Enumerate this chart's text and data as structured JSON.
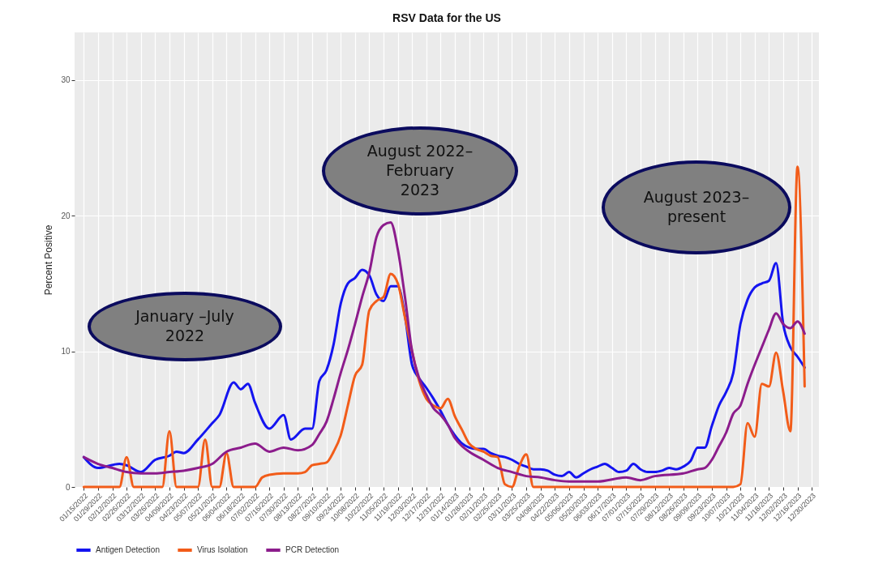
{
  "chart_data": {
    "type": "line",
    "title": "RSV Data for the US",
    "ylabel": "Percent Positive",
    "xlim": [
      "2022-01-06",
      "2024-01-06"
    ],
    "ylim": [
      0,
      33.5
    ],
    "yticks": [
      0,
      10,
      20,
      30
    ],
    "xticks": [
      {
        "value": "2022-01-15",
        "label": "01/15/2022"
      },
      {
        "value": "2022-01-29",
        "label": "01/29/2022"
      },
      {
        "value": "2022-02-12",
        "label": "02/12/2022"
      },
      {
        "value": "2022-02-26",
        "label": "02/26/2022"
      },
      {
        "value": "2022-03-12",
        "label": "03/12/2022"
      },
      {
        "value": "2022-03-26",
        "label": "03/26/2022"
      },
      {
        "value": "2022-04-09",
        "label": "04/09/2022"
      },
      {
        "value": "2022-04-23",
        "label": "04/23/2022"
      },
      {
        "value": "2022-05-07",
        "label": "05/07/2022"
      },
      {
        "value": "2022-05-21",
        "label": "05/21/2022"
      },
      {
        "value": "2022-06-04",
        "label": "06/04/2022"
      },
      {
        "value": "2022-06-18",
        "label": "06/18/2022"
      },
      {
        "value": "2022-07-02",
        "label": "07/02/2022"
      },
      {
        "value": "2022-07-16",
        "label": "07/16/2022"
      },
      {
        "value": "2022-07-30",
        "label": "07/30/2022"
      },
      {
        "value": "2022-08-13",
        "label": "08/13/2022"
      },
      {
        "value": "2022-08-27",
        "label": "08/27/2022"
      },
      {
        "value": "2022-09-10",
        "label": "09/10/2022"
      },
      {
        "value": "2022-09-24",
        "label": "09/24/2022"
      },
      {
        "value": "2022-10-08",
        "label": "10/08/2022"
      },
      {
        "value": "2022-10-22",
        "label": "10/22/2022"
      },
      {
        "value": "2022-11-05",
        "label": "11/05/2022"
      },
      {
        "value": "2022-11-19",
        "label": "11/19/2022"
      },
      {
        "value": "2022-12-03",
        "label": "12/03/2022"
      },
      {
        "value": "2022-12-17",
        "label": "12/17/2022"
      },
      {
        "value": "2022-12-31",
        "label": "12/31/2022"
      },
      {
        "value": "2023-01-14",
        "label": "01/14/2023"
      },
      {
        "value": "2023-01-28",
        "label": "01/28/2023"
      },
      {
        "value": "2023-02-11",
        "label": "02/11/2023"
      },
      {
        "value": "2023-02-25",
        "label": "02/25/2023"
      },
      {
        "value": "2023-03-11",
        "label": "03/11/2023"
      },
      {
        "value": "2023-03-25",
        "label": "03/25/2023"
      },
      {
        "value": "2023-04-08",
        "label": "04/08/2023"
      },
      {
        "value": "2023-04-22",
        "label": "04/22/2023"
      },
      {
        "value": "2023-05-06",
        "label": "05/06/2023"
      },
      {
        "value": "2023-05-20",
        "label": "05/20/2023"
      },
      {
        "value": "2023-06-03",
        "label": "06/03/2023"
      },
      {
        "value": "2023-06-17",
        "label": "06/17/2023"
      },
      {
        "value": "2023-07-01",
        "label": "07/01/2023"
      },
      {
        "value": "2023-07-15",
        "label": "07/15/2023"
      },
      {
        "value": "2023-07-29",
        "label": "07/29/2023"
      },
      {
        "value": "2023-08-12",
        "label": "08/12/2023"
      },
      {
        "value": "2023-08-26",
        "label": "08/26/2023"
      },
      {
        "value": "2023-09-09",
        "label": "09/09/2023"
      },
      {
        "value": "2023-09-23",
        "label": "09/23/2023"
      },
      {
        "value": "2023-10-07",
        "label": "10/07/2023"
      },
      {
        "value": "2023-10-21",
        "label": "10/21/2023"
      },
      {
        "value": "2023-11-04",
        "label": "11/04/2023"
      },
      {
        "value": "2023-11-18",
        "label": "11/18/2023"
      },
      {
        "value": "2023-12-02",
        "label": "12/02/2023"
      },
      {
        "value": "2023-12-16",
        "label": "12/16/2023"
      },
      {
        "value": "2023-12-30",
        "label": "12/30/2023"
      }
    ],
    "grid": true,
    "legend": "bottom",
    "marker": "none",
    "line_style": "solid",
    "annotations": [
      "January –July\n2022",
      "August 2022–\nFebruary\n2023",
      "August 2023–\npresent"
    ],
    "series": [
      {
        "name": "Antigen Detection",
        "color": "#1414f0",
        "x": [
          "2022-01-15",
          "2022-01-29",
          "2022-02-19",
          "2022-02-26",
          "2022-03-12",
          "2022-03-26",
          "2022-04-09",
          "2022-04-16",
          "2022-04-23",
          "2022-05-07",
          "2022-05-21",
          "2022-05-28",
          "2022-06-11",
          "2022-06-18",
          "2022-06-25",
          "2022-07-02",
          "2022-07-16",
          "2022-07-30",
          "2022-08-06",
          "2022-08-20",
          "2022-08-27",
          "2022-09-03",
          "2022-09-10",
          "2022-09-17",
          "2022-09-24",
          "2022-10-01",
          "2022-10-08",
          "2022-10-15",
          "2022-10-22",
          "2022-10-29",
          "2022-11-05",
          "2022-11-12",
          "2022-11-19",
          "2022-11-26",
          "2022-12-03",
          "2022-12-10",
          "2022-12-17",
          "2022-12-24",
          "2022-12-31",
          "2023-01-07",
          "2023-01-14",
          "2023-01-21",
          "2023-01-28",
          "2023-02-04",
          "2023-02-11",
          "2023-02-18",
          "2023-02-25",
          "2023-03-04",
          "2023-03-11",
          "2023-03-18",
          "2023-03-25",
          "2023-04-01",
          "2023-04-08",
          "2023-04-15",
          "2023-04-22",
          "2023-04-29",
          "2023-05-06",
          "2023-05-13",
          "2023-05-20",
          "2023-05-27",
          "2023-06-03",
          "2023-06-10",
          "2023-06-17",
          "2023-06-24",
          "2023-07-01",
          "2023-07-08",
          "2023-07-15",
          "2023-07-22",
          "2023-07-29",
          "2023-08-05",
          "2023-08-12",
          "2023-08-19",
          "2023-08-26",
          "2023-09-02",
          "2023-09-09",
          "2023-09-16",
          "2023-09-23",
          "2023-09-30",
          "2023-10-07",
          "2023-10-14",
          "2023-10-21",
          "2023-10-28",
          "2023-11-04",
          "2023-11-11",
          "2023-11-18",
          "2023-11-25",
          "2023-12-02",
          "2023-12-09",
          "2023-12-16",
          "2023-12-23"
        ],
        "values": [
          2.2,
          1.4,
          1.7,
          1.6,
          1.1,
          2.0,
          2.3,
          2.6,
          2.5,
          3.5,
          4.7,
          5.3,
          7.7,
          7.2,
          7.6,
          6.2,
          4.3,
          5.3,
          3.5,
          4.3,
          4.3,
          7.8,
          8.6,
          10.5,
          13.5,
          15.0,
          15.4,
          16.0,
          15.6,
          14.2,
          13.7,
          14.8,
          14.8,
          12.6,
          9.0,
          8.0,
          7.3,
          6.5,
          5.6,
          4.6,
          3.8,
          3.2,
          2.9,
          2.8,
          2.8,
          2.5,
          2.3,
          2.2,
          2.0,
          1.7,
          1.5,
          1.3,
          1.3,
          1.2,
          0.9,
          0.8,
          1.1,
          0.7,
          1.0,
          1.3,
          1.5,
          1.7,
          1.4,
          1.1,
          1.2,
          1.7,
          1.3,
          1.1,
          1.1,
          1.2,
          1.4,
          1.3,
          1.5,
          1.9,
          2.9,
          2.9,
          4.5,
          6.0,
          7.0,
          8.4,
          12.0,
          13.8,
          14.7,
          15.0,
          15.2,
          16.5,
          12.0,
          10.3,
          9.6,
          8.8
        ]
      },
      {
        "name": "Virus Isolation",
        "color": "#f25c19",
        "x": [
          "2022-01-15",
          "2022-02-19",
          "2022-02-26",
          "2022-03-05",
          "2022-04-02",
          "2022-04-09",
          "2022-04-16",
          "2022-05-07",
          "2022-05-14",
          "2022-05-21",
          "2022-05-28",
          "2022-06-04",
          "2022-06-11",
          "2022-07-02",
          "2022-07-09",
          "2022-07-16",
          "2022-07-30",
          "2022-08-13",
          "2022-08-20",
          "2022-08-27",
          "2022-09-03",
          "2022-09-10",
          "2022-09-17",
          "2022-09-24",
          "2022-10-01",
          "2022-10-08",
          "2022-10-15",
          "2022-10-22",
          "2022-10-29",
          "2022-11-05",
          "2022-11-12",
          "2022-11-19",
          "2022-11-26",
          "2022-12-03",
          "2022-12-10",
          "2022-12-17",
          "2022-12-24",
          "2022-12-31",
          "2023-01-07",
          "2023-01-14",
          "2023-01-21",
          "2023-01-28",
          "2023-02-04",
          "2023-02-11",
          "2023-02-18",
          "2023-02-25",
          "2023-03-04",
          "2023-03-11",
          "2023-03-18",
          "2023-03-25",
          "2023-04-01",
          "2023-04-08",
          "2023-10-14",
          "2023-10-21",
          "2023-10-28",
          "2023-11-04",
          "2023-11-11",
          "2023-11-18",
          "2023-11-25",
          "2023-12-02",
          "2023-12-09",
          "2023-12-16",
          "2023-12-23"
        ],
        "values": [
          0,
          0,
          2.2,
          0,
          0,
          4.1,
          0,
          0,
          3.5,
          0,
          0,
          2.5,
          0,
          0,
          0.7,
          0.9,
          1.0,
          1.0,
          1.1,
          1.6,
          1.7,
          1.8,
          2.6,
          3.8,
          6.0,
          8.2,
          9.0,
          13.0,
          13.7,
          14.0,
          15.7,
          15.0,
          12.5,
          10.0,
          7.8,
          6.5,
          6.0,
          5.8,
          6.5,
          5.2,
          4.2,
          3.2,
          2.8,
          2.6,
          2.3,
          2.2,
          0.2,
          0,
          1.5,
          2.4,
          0,
          0,
          0,
          0.2,
          4.7,
          3.7,
          7.6,
          7.4,
          9.9,
          7.0,
          4.1,
          23.6,
          7.4
        ]
      },
      {
        "name": "PCR Detection",
        "color": "#8c1c8c",
        "x": [
          "2022-01-15",
          "2022-01-29",
          "2022-02-12",
          "2022-02-26",
          "2022-03-12",
          "2022-03-26",
          "2022-04-09",
          "2022-04-23",
          "2022-05-07",
          "2022-05-21",
          "2022-06-04",
          "2022-06-18",
          "2022-07-02",
          "2022-07-16",
          "2022-07-30",
          "2022-08-13",
          "2022-08-27",
          "2022-09-03",
          "2022-09-10",
          "2022-09-17",
          "2022-09-24",
          "2022-10-01",
          "2022-10-08",
          "2022-10-15",
          "2022-10-22",
          "2022-10-29",
          "2022-11-05",
          "2022-11-12",
          "2022-11-19",
          "2022-11-26",
          "2022-12-03",
          "2022-12-10",
          "2022-12-17",
          "2022-12-24",
          "2022-12-31",
          "2023-01-07",
          "2023-01-14",
          "2023-01-21",
          "2023-01-28",
          "2023-02-11",
          "2023-02-25",
          "2023-03-11",
          "2023-03-25",
          "2023-04-08",
          "2023-04-22",
          "2023-05-06",
          "2023-06-03",
          "2023-07-01",
          "2023-07-15",
          "2023-07-29",
          "2023-08-26",
          "2023-09-09",
          "2023-09-16",
          "2023-09-23",
          "2023-09-30",
          "2023-10-07",
          "2023-10-14",
          "2023-10-21",
          "2023-10-28",
          "2023-11-04",
          "2023-11-11",
          "2023-11-18",
          "2023-11-25",
          "2023-12-02",
          "2023-12-09",
          "2023-12-16",
          "2023-12-23"
        ],
        "values": [
          2.2,
          1.7,
          1.4,
          1.1,
          1.0,
          1.0,
          1.1,
          1.2,
          1.4,
          1.7,
          2.6,
          2.9,
          3.2,
          2.6,
          2.9,
          2.7,
          3.1,
          3.9,
          4.8,
          6.5,
          8.4,
          10.1,
          12.0,
          14.0,
          15.8,
          18.4,
          19.3,
          19.5,
          17.5,
          14.0,
          10.0,
          8.0,
          6.8,
          5.8,
          5.3,
          4.6,
          3.6,
          3.0,
          2.6,
          2.0,
          1.4,
          1.1,
          0.8,
          0.7,
          0.5,
          0.4,
          0.4,
          0.7,
          0.5,
          0.8,
          1.0,
          1.3,
          1.4,
          2.0,
          3.0,
          4.0,
          5.4,
          6.0,
          7.6,
          9.0,
          10.3,
          11.6,
          12.8,
          12.0,
          11.7,
          12.2,
          11.3
        ]
      }
    ]
  }
}
